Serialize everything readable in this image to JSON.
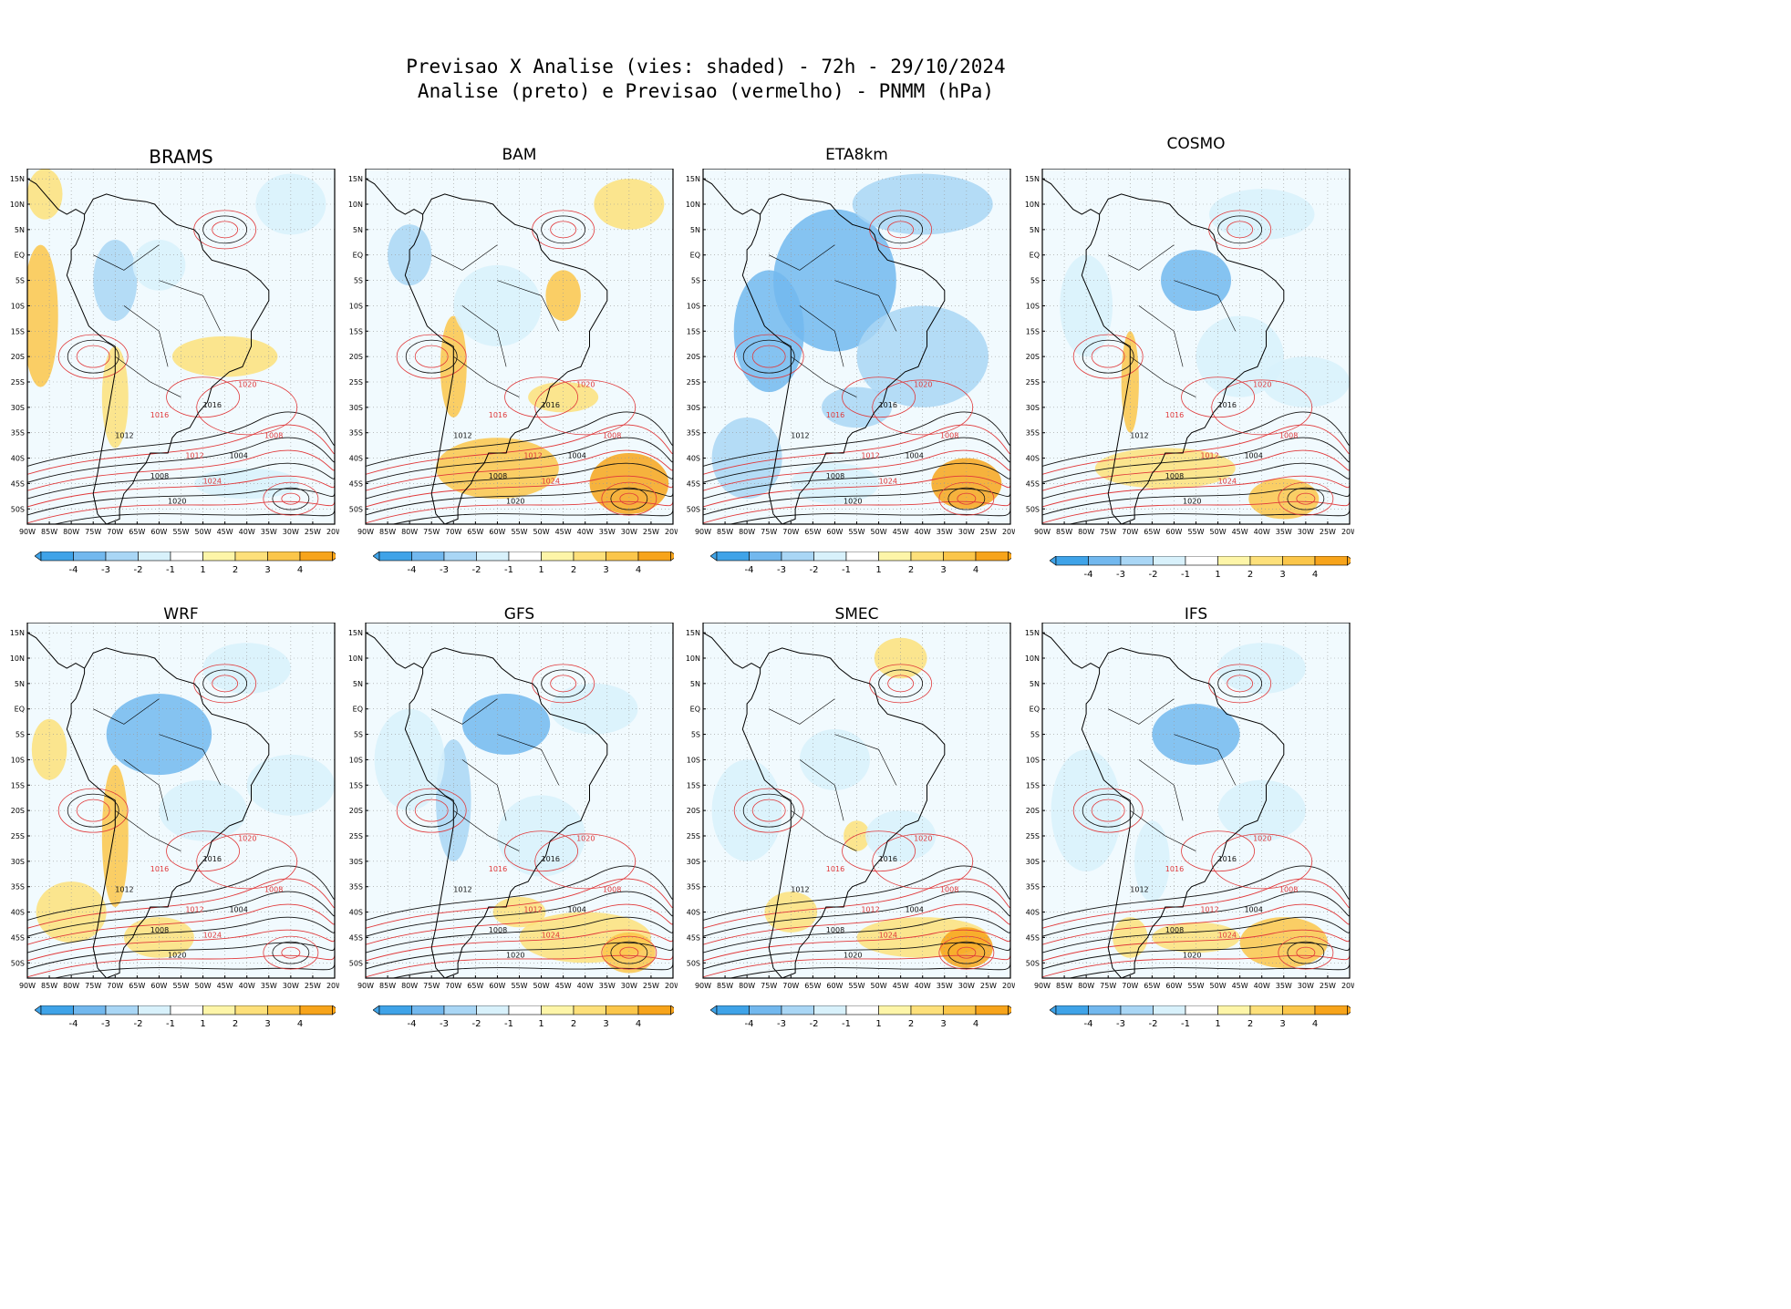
{
  "figure": {
    "title_line1": "Previsao X Analise (vies: shaded) - 72h - 29/10/2024",
    "title_line2": "Analise (preto) e Previsao (vermelho) - PNMM (hPa)"
  },
  "panels": [
    {
      "name": "BRAMS"
    },
    {
      "name": "BAM"
    },
    {
      "name": "ETA8km"
    },
    {
      "name": "COSMO"
    },
    {
      "name": "WRF"
    },
    {
      "name": "GFS"
    },
    {
      "name": "SMEC"
    },
    {
      "name": "IFS"
    }
  ],
  "axes": {
    "lon_labels": [
      "90W",
      "85W",
      "80W",
      "75W",
      "70W",
      "65W",
      "60W",
      "55W",
      "50W",
      "45W",
      "40W",
      "35W",
      "30W",
      "25W",
      "20W"
    ],
    "lat_labels": [
      "15N",
      "10N",
      "5N",
      "EQ",
      "5S",
      "10S",
      "15S",
      "20S",
      "25S",
      "30S",
      "35S",
      "40S",
      "45S",
      "50S"
    ]
  },
  "colorbar": {
    "tick_labels": [
      "-4",
      "-3",
      "-2",
      "-1",
      "1",
      "2",
      "3",
      "4"
    ],
    "colors": [
      "#3fa3e8",
      "#72b8ee",
      "#a9d6f5",
      "#d8f1fb",
      "#ffffff",
      "#fdf5a8",
      "#fde07a",
      "#fbc64a",
      "#f7a41b"
    ]
  },
  "contour_labels": {
    "analysis": [
      "1004",
      "1008",
      "1012",
      "1016",
      "1020"
    ],
    "forecast": [
      "1008",
      "1012",
      "1016",
      "1020",
      "1024"
    ],
    "colors": {
      "analysis": "#111111",
      "forecast": "#e0383a"
    }
  }
}
